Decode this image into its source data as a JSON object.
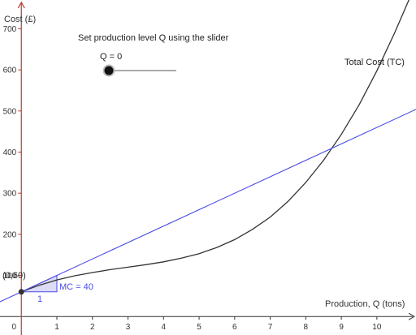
{
  "chart_data": {
    "type": "line",
    "title": "",
    "xlabel": "Production, Q (tons)",
    "ylabel": "Cost (£)",
    "xlim": [
      -0.6,
      11.1
    ],
    "ylim": [
      -45,
      770
    ],
    "x_ticks": [
      0,
      1,
      2,
      3,
      4,
      5,
      6,
      7,
      8,
      9,
      10
    ],
    "y_ticks": [
      100,
      200,
      300,
      400,
      500,
      600,
      700
    ],
    "grid": false,
    "series": [
      {
        "name": "Total Cost (TC)",
        "color": "#333333",
        "x": [
          0,
          0.5,
          1,
          1.5,
          2,
          2.5,
          3,
          3.5,
          4,
          4.5,
          5,
          5.5,
          6,
          6.5,
          7,
          7.5,
          8,
          8.5,
          9,
          9.5,
          10,
          10.5,
          11
        ],
        "y": [
          60,
          76,
          89,
          99,
          107,
          114,
          120,
          126,
          133,
          142,
          153,
          168,
          187,
          212,
          242,
          280,
          326,
          380,
          443,
          515,
          598,
          690,
          790
        ]
      },
      {
        "name": "",
        "color": "#4a4ae6",
        "x": [
          -0.6,
          11.1
        ],
        "y": [
          36,
          504
        ]
      }
    ],
    "annotations": {
      "point_label": "(0,60)",
      "mc_label": "MC = 40",
      "run_label": "1",
      "slope_triangle": {
        "x0": 0,
        "x1": 1,
        "y0": 60,
        "y1": 100
      }
    },
    "colors": {
      "y_axis": "#c0392b",
      "tc_curve": "#333333",
      "mc_line": "#4a4ae6",
      "triangle_fill": "#dcdcf5",
      "point": "#333333"
    }
  },
  "slider": {
    "instruction": "Set production level Q using the slider",
    "label": "Q = 0",
    "value": 0,
    "min": 0,
    "max": 11
  }
}
